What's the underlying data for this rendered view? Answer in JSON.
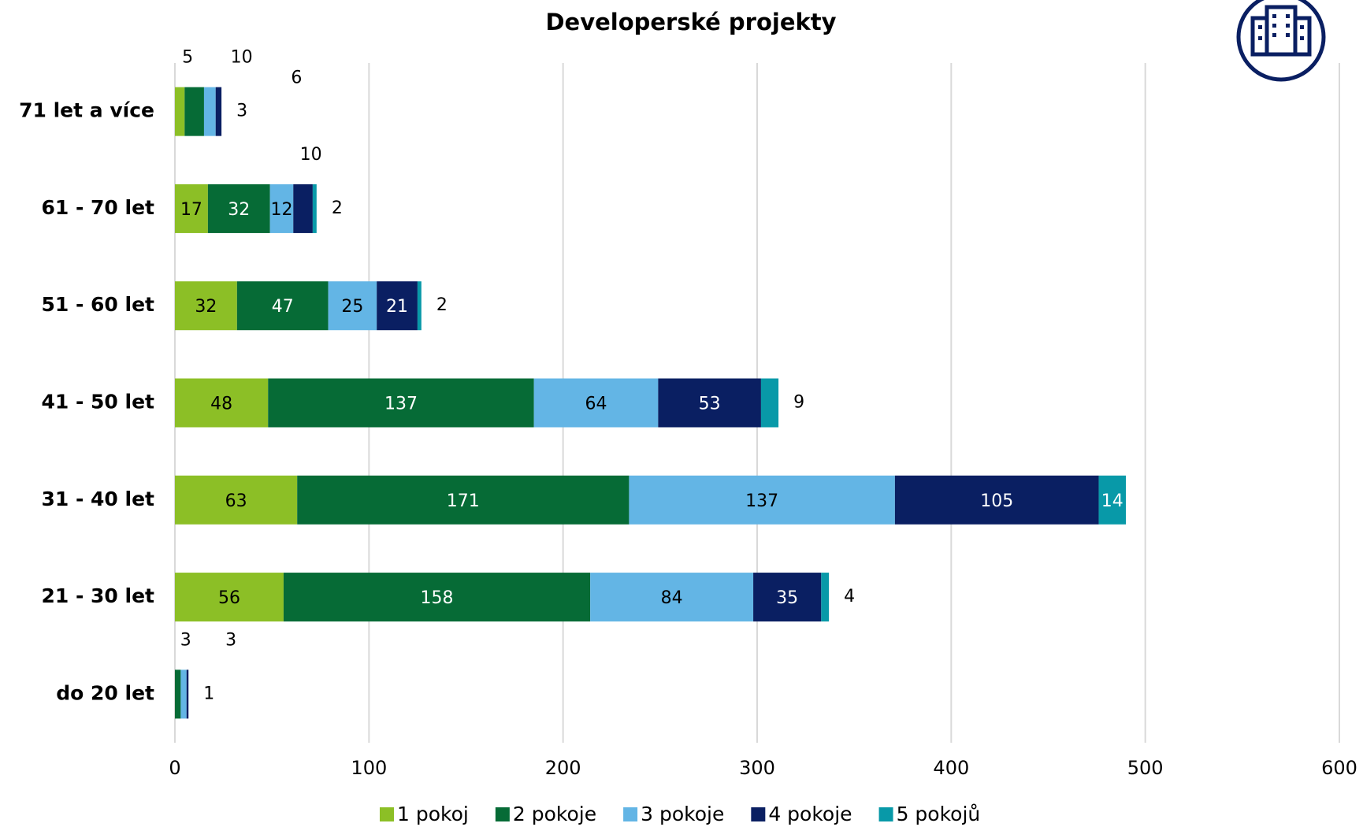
{
  "chart_data": {
    "type": "stacked_bar_horizontal",
    "title": "Developerské projekty",
    "categories": [
      "71 let a více",
      "61 - 70 let",
      "51 - 60 let",
      "41 - 50 let",
      "31 - 40 let",
      "21 - 30 let",
      "do 20 let"
    ],
    "series": [
      {
        "name": "1 pokoj",
        "color": "#8cbf26",
        "values": [
          5,
          17,
          32,
          48,
          63,
          56,
          null
        ]
      },
      {
        "name": "2 pokoje",
        "color": "#066b36",
        "values": [
          10,
          32,
          47,
          137,
          171,
          158,
          3
        ]
      },
      {
        "name": "3 pokoje",
        "color": "#63b5e5",
        "values": [
          6,
          12,
          25,
          64,
          137,
          84,
          3
        ]
      },
      {
        "name": "4 pokoje",
        "color": "#0a1f62",
        "values": [
          3,
          10,
          21,
          53,
          105,
          35,
          1
        ]
      },
      {
        "name": "5 pokojů",
        "color": "#0899a8",
        "values": [
          null,
          2,
          2,
          9,
          14,
          4,
          null
        ]
      }
    ],
    "xlim": [
      0,
      600
    ],
    "xticks": [
      0,
      100,
      200,
      300,
      400,
      500,
      600
    ],
    "grid": true,
    "legend": "bottom"
  }
}
